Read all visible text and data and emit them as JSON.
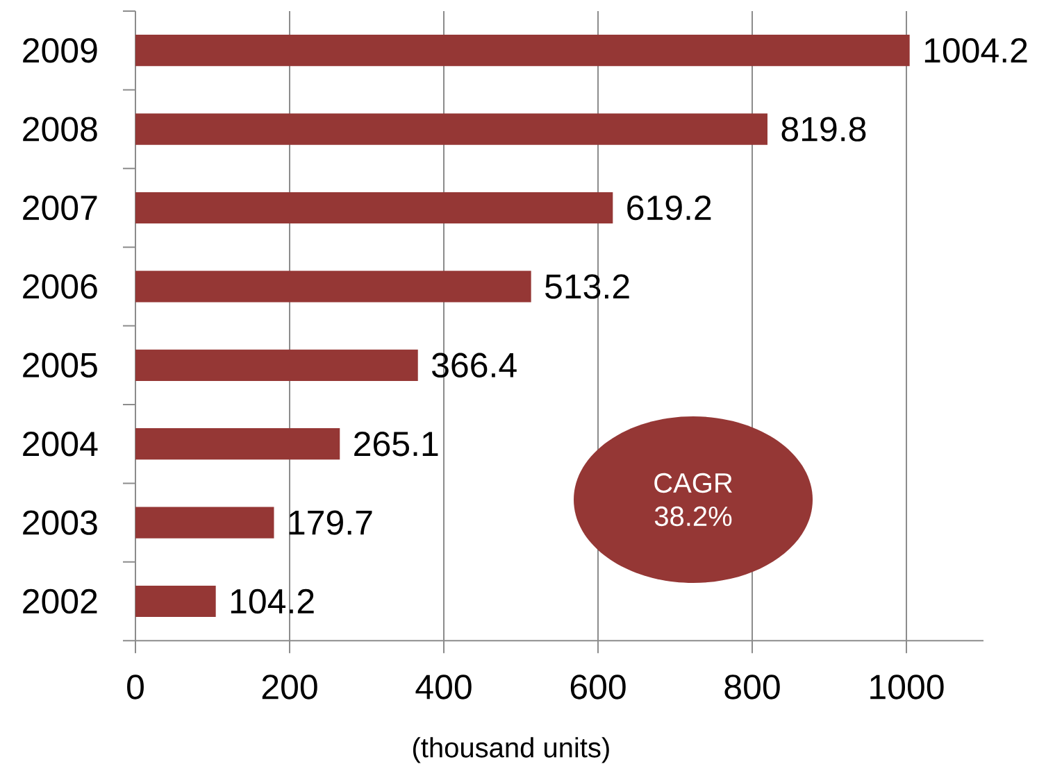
{
  "chart_data": {
    "type": "bar",
    "orientation": "horizontal",
    "categories": [
      "2009",
      "2008",
      "2007",
      "2006",
      "2005",
      "2004",
      "2003",
      "2002"
    ],
    "values": [
      1004.2,
      819.8,
      619.2,
      513.2,
      366.4,
      265.1,
      179.7,
      104.2
    ],
    "color": "#953735",
    "xlim": [
      0,
      1100
    ],
    "xticks": [
      0,
      200,
      400,
      600,
      800,
      1000
    ],
    "xlabel": "(thousand units)",
    "grid": "x",
    "data_labels": true,
    "annotations": [
      "CAGR 38.2%"
    ]
  }
}
